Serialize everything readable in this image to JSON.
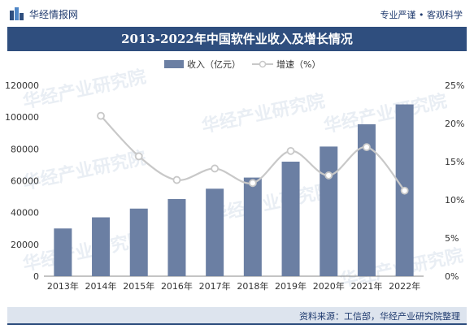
{
  "header": {
    "brand": "华经情报网",
    "slogan": "专业严谨 • 客观科学"
  },
  "watermark": "华经产业研究院",
  "source": "资料来源：工信部，华经产业研究院整理",
  "colors": {
    "bar": "#6b7fa3",
    "line": "#c8c8c8",
    "title_bg": "#2f4e7e"
  },
  "chart_data": {
    "type": "bar",
    "title": "2013-2022年中国软件业收入及增长情况",
    "categories": [
      "2013年",
      "2014年",
      "2015年",
      "2016年",
      "2017年",
      "2018年",
      "2019年",
      "2020年",
      "2021年",
      "2022年"
    ],
    "series": [
      {
        "name": "收入（亿元）",
        "type": "bar",
        "axis": "left",
        "values": [
          30000,
          37000,
          42500,
          48500,
          55000,
          62000,
          72000,
          81500,
          95500,
          108000
        ]
      },
      {
        "name": "增速（%）",
        "type": "line",
        "axis": "right",
        "values": [
          null,
          21.0,
          15.7,
          12.6,
          14.1,
          12.2,
          16.4,
          13.2,
          16.9,
          11.2
        ]
      }
    ],
    "ylim_left": [
      0,
      120000
    ],
    "yticks_left": [
      "0",
      "20000",
      "40000",
      "60000",
      "80000",
      "100000",
      "120000"
    ],
    "ylim_right": [
      0,
      25
    ],
    "yticks_right": [
      "0%",
      "5%",
      "10%",
      "15%",
      "20%",
      "25%"
    ],
    "legend_position": "top-center",
    "grid": false
  }
}
